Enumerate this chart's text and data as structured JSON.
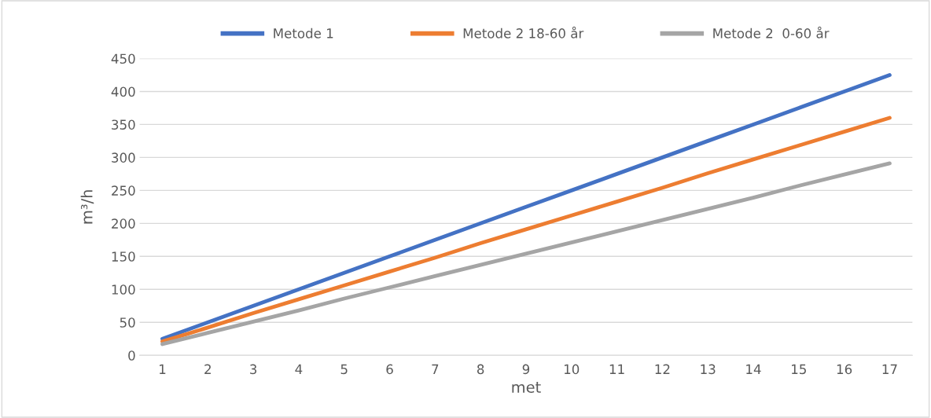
{
  "chart_data": {
    "type": "line",
    "xlabel": "met",
    "ylabel": "m³/h",
    "categories": [
      "1",
      "2",
      "3",
      "4",
      "5",
      "6",
      "7",
      "8",
      "9",
      "10",
      "11",
      "12",
      "13",
      "14",
      "15",
      "16",
      "17"
    ],
    "series": [
      {
        "name": "Metode 1",
        "color": "#4472c4",
        "values": [
          25,
          50,
          75,
          100,
          125,
          150,
          175,
          200,
          225,
          250,
          275,
          300,
          325,
          350,
          375,
          400,
          425
        ]
      },
      {
        "name": "Metode 2 18-60 år",
        "color": "#ed7d31",
        "values": [
          21,
          42,
          64,
          85,
          106,
          127,
          148,
          170,
          191,
          212,
          233,
          254,
          276,
          297,
          318,
          339,
          360
        ]
      },
      {
        "name": "Metode 2  0-60 år",
        "color": "#a5a5a5",
        "values": [
          17,
          34,
          51,
          68,
          86,
          103,
          120,
          137,
          154,
          171,
          188,
          205,
          222,
          239,
          257,
          274,
          291
        ]
      }
    ],
    "ylim": [
      0,
      450
    ],
    "yticks": [
      0,
      50,
      100,
      150,
      200,
      250,
      300,
      350,
      400,
      450
    ],
    "grid": "y",
    "legend": "top",
    "marker": "none",
    "line_style": "solid"
  }
}
